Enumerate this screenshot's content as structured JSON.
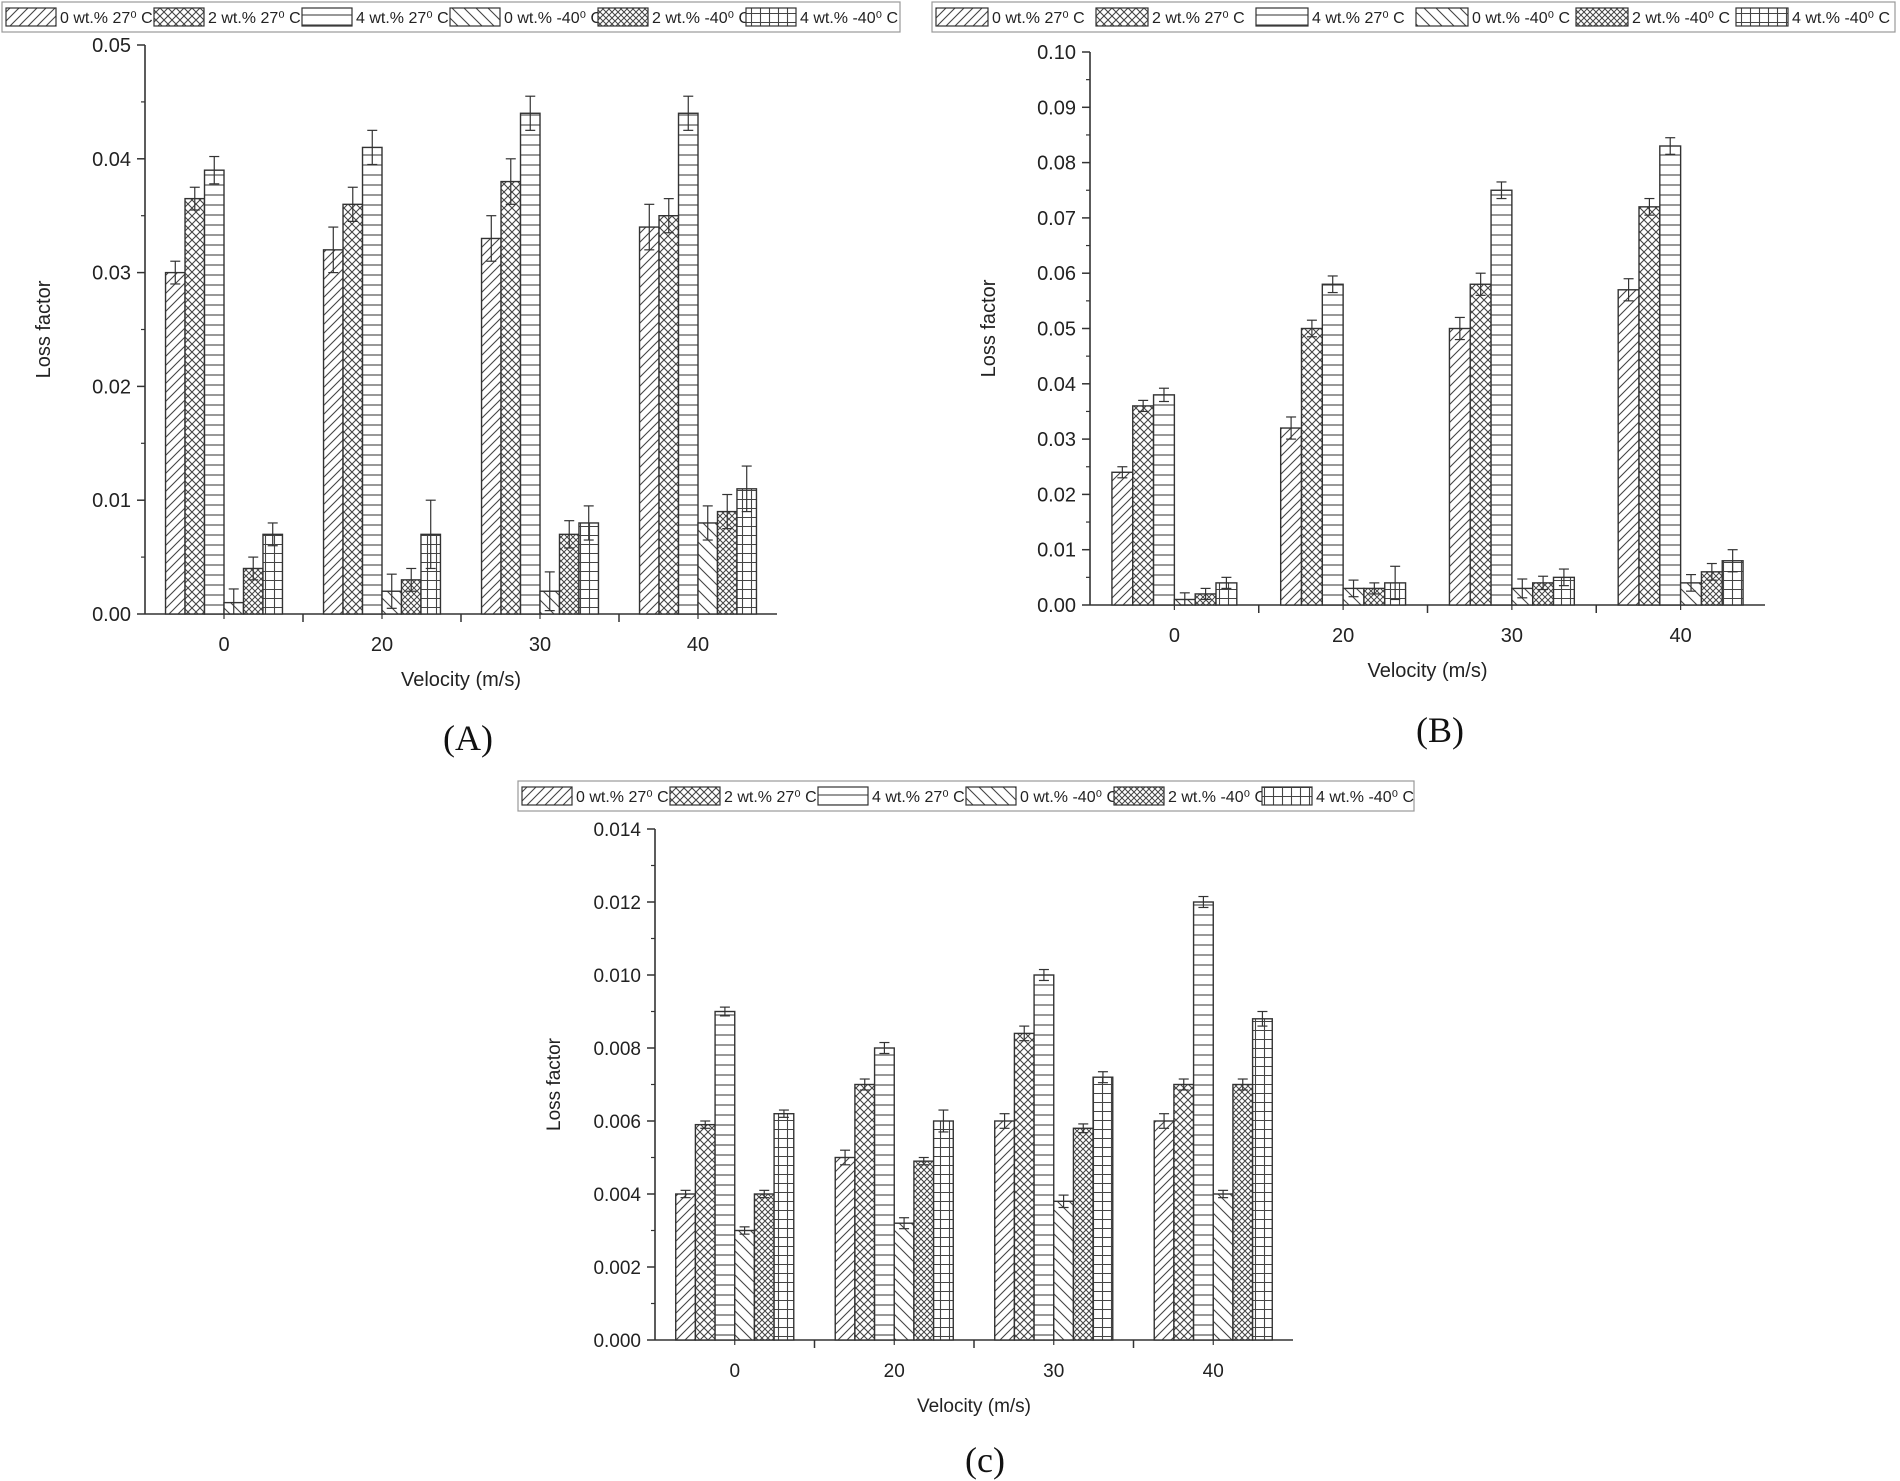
{
  "figure": {
    "legend_entries": [
      "0 wt.% 27⁰ C",
      "2 wt.% 27⁰ C",
      "4 wt.% 27⁰ C",
      "0 wt.% -40⁰ C",
      "2 wt.% -40⁰ C",
      "4 wt.% -40⁰ C"
    ],
    "colors": {
      "bar_fill": "#ffffff",
      "stroke": "#333333",
      "hatch": "#444444",
      "error_bar": "#333333"
    }
  },
  "chart_data": [
    {
      "type": "bar",
      "panel_label": "(A)",
      "title": "",
      "xlabel": "Velocity (m/s)",
      "ylabel": "Loss factor",
      "categories": [
        "0",
        "20",
        "30",
        "40"
      ],
      "ylim": [
        0,
        0.05
      ],
      "yticks": [
        "0.00",
        "0.01",
        "0.02",
        "0.03",
        "0.04",
        "0.05"
      ],
      "series": [
        {
          "name": "0 wt.% 27⁰ C",
          "values": [
            0.03,
            0.032,
            0.033,
            0.034
          ],
          "errors": [
            0.001,
            0.002,
            0.002,
            0.002
          ]
        },
        {
          "name": "2 wt.% 27⁰ C",
          "values": [
            0.0365,
            0.036,
            0.038,
            0.035
          ],
          "errors": [
            0.001,
            0.0015,
            0.002,
            0.0015
          ]
        },
        {
          "name": "4 wt.% 27⁰ C",
          "values": [
            0.039,
            0.041,
            0.044,
            0.044
          ],
          "errors": [
            0.0012,
            0.0015,
            0.0015,
            0.0015
          ]
        },
        {
          "name": "0 wt.% -40⁰ C",
          "values": [
            0.001,
            0.002,
            0.002,
            0.008
          ],
          "errors": [
            0.0012,
            0.0015,
            0.0017,
            0.0015
          ]
        },
        {
          "name": "2 wt.% -40⁰ C",
          "values": [
            0.004,
            0.003,
            0.007,
            0.009
          ],
          "errors": [
            0.001,
            0.001,
            0.0012,
            0.0015
          ]
        },
        {
          "name": "4 wt.% -40⁰ C",
          "values": [
            0.007,
            0.007,
            0.008,
            0.011
          ],
          "errors": [
            0.001,
            0.003,
            0.0015,
            0.002
          ]
        }
      ]
    },
    {
      "type": "bar",
      "panel_label": "(B)",
      "title": "",
      "xlabel": "Velocity (m/s)",
      "ylabel": "Loss factor",
      "categories": [
        "0",
        "20",
        "30",
        "40"
      ],
      "ylim": [
        0,
        0.1
      ],
      "yticks": [
        "0.00",
        "0.01",
        "0.02",
        "0.03",
        "0.04",
        "0.05",
        "0.06",
        "0.07",
        "0.08",
        "0.09",
        "0.10"
      ],
      "series": [
        {
          "name": "0 wt.% 27⁰ C",
          "values": [
            0.024,
            0.032,
            0.05,
            0.057
          ],
          "errors": [
            0.001,
            0.002,
            0.002,
            0.002
          ]
        },
        {
          "name": "2 wt.% 27⁰ C",
          "values": [
            0.036,
            0.05,
            0.058,
            0.072
          ],
          "errors": [
            0.001,
            0.0015,
            0.002,
            0.0015
          ]
        },
        {
          "name": "4 wt.% 27⁰ C",
          "values": [
            0.038,
            0.058,
            0.075,
            0.083
          ],
          "errors": [
            0.0012,
            0.0015,
            0.0015,
            0.0015
          ]
        },
        {
          "name": "0 wt.% -40⁰ C",
          "values": [
            0.001,
            0.003,
            0.003,
            0.004
          ],
          "errors": [
            0.0012,
            0.0015,
            0.0017,
            0.0015
          ]
        },
        {
          "name": "2 wt.% -40⁰ C",
          "values": [
            0.002,
            0.003,
            0.004,
            0.006
          ],
          "errors": [
            0.001,
            0.001,
            0.0012,
            0.0015
          ]
        },
        {
          "name": "4 wt.% -40⁰ C",
          "values": [
            0.004,
            0.004,
            0.005,
            0.008
          ],
          "errors": [
            0.001,
            0.003,
            0.0015,
            0.002
          ]
        }
      ]
    },
    {
      "type": "bar",
      "panel_label": "(c)",
      "title": "",
      "xlabel": "Velocity (m/s)",
      "ylabel": "Loss factor",
      "categories": [
        "0",
        "20",
        "30",
        "40"
      ],
      "ylim": [
        0,
        0.014
      ],
      "yticks": [
        "0.000",
        "0.002",
        "0.004",
        "0.006",
        "0.008",
        "0.010",
        "0.012",
        "0.014"
      ],
      "series": [
        {
          "name": "0 wt.% 27⁰ C",
          "values": [
            0.004,
            0.005,
            0.006,
            0.006
          ],
          "errors": [
            0.0001,
            0.0002,
            0.0002,
            0.0002
          ]
        },
        {
          "name": "2 wt.% 27⁰ C",
          "values": [
            0.0059,
            0.007,
            0.0084,
            0.007
          ],
          "errors": [
            0.0001,
            0.00015,
            0.0002,
            0.00015
          ]
        },
        {
          "name": "4 wt.% 27⁰ C",
          "values": [
            0.009,
            0.008,
            0.01,
            0.012
          ],
          "errors": [
            0.00012,
            0.00015,
            0.00015,
            0.00015
          ]
        },
        {
          "name": "0 wt.% -40⁰ C",
          "values": [
            0.003,
            0.0032,
            0.0038,
            0.004
          ],
          "errors": [
            0.0001,
            0.00015,
            0.00017,
            0.0001
          ]
        },
        {
          "name": "2 wt.% -40⁰ C",
          "values": [
            0.004,
            0.0049,
            0.0058,
            0.007
          ],
          "errors": [
            0.0001,
            0.0001,
            0.00012,
            0.00015
          ]
        },
        {
          "name": "4 wt.% -40⁰ C",
          "values": [
            0.0062,
            0.006,
            0.0072,
            0.0088
          ],
          "errors": [
            0.0001,
            0.0003,
            0.00015,
            0.0002
          ]
        }
      ]
    }
  ]
}
